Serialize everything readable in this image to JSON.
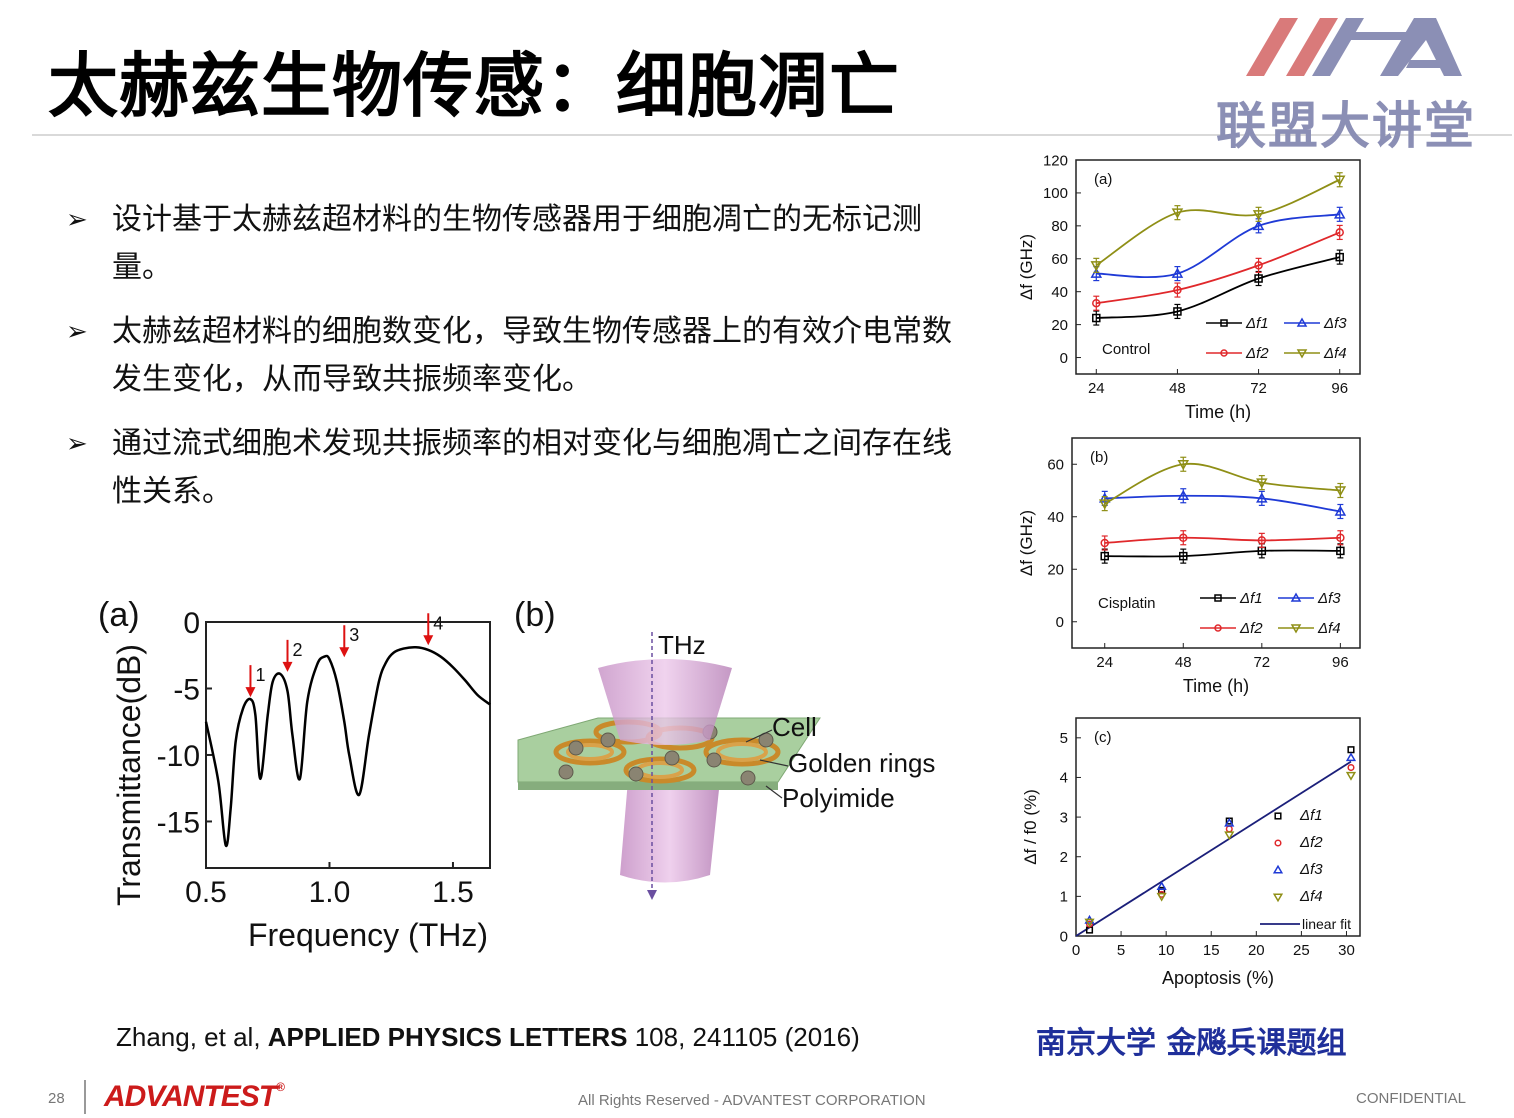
{
  "slide": {
    "title": "太赫兹生物传感：细胞凋亡",
    "logo_text": "联盟大讲堂",
    "bullets": [
      "设计基于太赫兹超材料的生物传感器用于细胞凋亡的无标记测量。",
      "太赫兹超材料的细胞数变化，导致生物传感器上的有效介电常数发生变化，从而导致共振频率变化。",
      "通过流式细胞术发现共振频率的相对变化与细胞凋亡之间存在线性关系。"
    ],
    "bullet_mark": "➢",
    "citation_pre": "Zhang, et al, ",
    "citation_journal": "APPLIED PHYSICS LETTERS",
    "citation_post": " 108, 241105 (2016)",
    "group": "南京大学 金飚兵课题组",
    "page_number": "28",
    "company": "ADVANTEST",
    "company_mark": "®",
    "rights": "All Rights Reserved - ADVANTEST CORPORATION",
    "confidential": "CONFIDENTIAL",
    "colors": {
      "accent_red": "#cc1b1b",
      "logo_red": "#d97a7a",
      "logo_blue": "#8b8fb5",
      "group_blue": "#1f2f9a"
    }
  },
  "figure_b": {
    "panel": "(b)",
    "thz": "THz",
    "cell": "Cell",
    "rings": "Golden rings",
    "polyimide": "Polyimide"
  },
  "chart_data": [
    {
      "type": "line",
      "panel": "(a)",
      "xlabel": "Frequency (THz)",
      "ylabel": "Transmittance(dB)",
      "xlim": [
        0.5,
        1.65
      ],
      "ylim": [
        -18.5,
        0
      ],
      "xticks": [
        "0.5",
        "1.0",
        "1.5"
      ],
      "yticks": [
        "0",
        "-5",
        "-10",
        "-15"
      ],
      "x": [
        0.5,
        0.55,
        0.58,
        0.6,
        0.62,
        0.65,
        0.68,
        0.7,
        0.72,
        0.75,
        0.77,
        0.8,
        0.83,
        0.85,
        0.88,
        0.91,
        0.95,
        0.98,
        1.0,
        1.03,
        1.06,
        1.08,
        1.12,
        1.16,
        1.2,
        1.23,
        1.26,
        1.3,
        1.35,
        1.4,
        1.45,
        1.5,
        1.55,
        1.6,
        1.65
      ],
      "y": [
        -7.5,
        -12,
        -16.8,
        -14,
        -9,
        -6.5,
        -5.8,
        -7,
        -11.8,
        -7,
        -4.5,
        -3.9,
        -5.2,
        -8.5,
        -11.8,
        -6,
        -3.2,
        -2.6,
        -2.8,
        -4.5,
        -7.5,
        -10,
        -13,
        -8.5,
        -4.5,
        -3,
        -2.3,
        -2,
        -1.9,
        -2.1,
        -2.6,
        -3.4,
        -4.4,
        -5.5,
        -6.2
      ],
      "annotations": [
        {
          "label": "1",
          "x": 0.68,
          "y": -5.8
        },
        {
          "label": "2",
          "x": 0.83,
          "y": -3.9
        },
        {
          "label": "3",
          "x": 1.06,
          "y": -2.8
        },
        {
          "label": "4",
          "x": 1.4,
          "y": -1.9
        }
      ]
    },
    {
      "type": "line",
      "panel": "(a)",
      "condition": "Control",
      "xlabel": "Time (h)",
      "ylabel": "Δf (GHz)",
      "x": [
        24,
        48,
        72,
        96
      ],
      "xlim": [
        18,
        102
      ],
      "ylim": [
        -10,
        120
      ],
      "xticks": [
        "24",
        "48",
        "72",
        "96"
      ],
      "yticks": [
        "0",
        "20",
        "40",
        "60",
        "80",
        "100",
        "120"
      ],
      "series": [
        {
          "name": "Δf1",
          "color": "#000000",
          "marker": "square",
          "values": [
            24,
            28,
            48,
            61
          ]
        },
        {
          "name": "Δf2",
          "color": "#e0282b",
          "marker": "circle",
          "values": [
            33,
            41,
            56,
            76
          ]
        },
        {
          "name": "Δf3",
          "color": "#1f3ad6",
          "marker": "triangle-up",
          "values": [
            51,
            51,
            80,
            87
          ]
        },
        {
          "name": "Δf4",
          "color": "#8f8f16",
          "marker": "triangle-down",
          "values": [
            56,
            88,
            87,
            108
          ]
        }
      ]
    },
    {
      "type": "line",
      "panel": "(b)",
      "condition": "Cisplatin",
      "xlabel": "Time (h)",
      "ylabel": "Δf (GHz)",
      "x": [
        24,
        48,
        72,
        96
      ],
      "xlim": [
        14,
        102
      ],
      "ylim": [
        -10,
        70
      ],
      "xticks": [
        "24",
        "48",
        "72",
        "96"
      ],
      "yticks": [
        "0",
        "20",
        "40",
        "60"
      ],
      "series": [
        {
          "name": "Δf1",
          "color": "#000000",
          "marker": "square",
          "values": [
            25,
            25,
            27,
            27
          ]
        },
        {
          "name": "Δf2",
          "color": "#e0282b",
          "marker": "circle",
          "values": [
            30,
            32,
            31,
            32
          ]
        },
        {
          "name": "Δf3",
          "color": "#1f3ad6",
          "marker": "triangle-up",
          "values": [
            47,
            48,
            47,
            42
          ]
        },
        {
          "name": "Δf4",
          "color": "#8f8f16",
          "marker": "triangle-down",
          "values": [
            45,
            60,
            53,
            50
          ]
        }
      ]
    },
    {
      "type": "scatter",
      "panel": "(c)",
      "xlabel": "Apoptosis (%)",
      "ylabel": "Δf / f0 (%)",
      "xlim": [
        0,
        31.5
      ],
      "ylim": [
        0,
        5.5
      ],
      "xticks": [
        "0",
        "5",
        "10",
        "15",
        "20",
        "25",
        "30"
      ],
      "yticks": [
        "0",
        "1",
        "2",
        "3",
        "4",
        "5"
      ],
      "series": [
        {
          "name": "Δf1",
          "color": "#000000",
          "marker": "square",
          "x": [
            1.5,
            9.5,
            17,
            30.5
          ],
          "values": [
            0.15,
            1.15,
            2.9,
            4.7
          ]
        },
        {
          "name": "Δf2",
          "color": "#e0282b",
          "marker": "circle",
          "x": [
            1.5,
            9.5,
            17,
            30.5
          ],
          "values": [
            0.3,
            1.05,
            2.7,
            4.25
          ]
        },
        {
          "name": "Δf3",
          "color": "#1f3ad6",
          "marker": "triangle-up",
          "x": [
            1.5,
            9.5,
            17,
            30.5
          ],
          "values": [
            0.4,
            1.25,
            2.85,
            4.5
          ]
        },
        {
          "name": "Δf4",
          "color": "#8f8f16",
          "marker": "triangle-down",
          "x": [
            1.5,
            9.5,
            17,
            30.5
          ],
          "values": [
            0.35,
            1.0,
            2.55,
            4.05
          ]
        }
      ],
      "fit": {
        "name": "linear fit",
        "color": "#1b1f7a",
        "x": [
          0,
          30.5
        ],
        "values": [
          0,
          4.4
        ]
      }
    }
  ]
}
